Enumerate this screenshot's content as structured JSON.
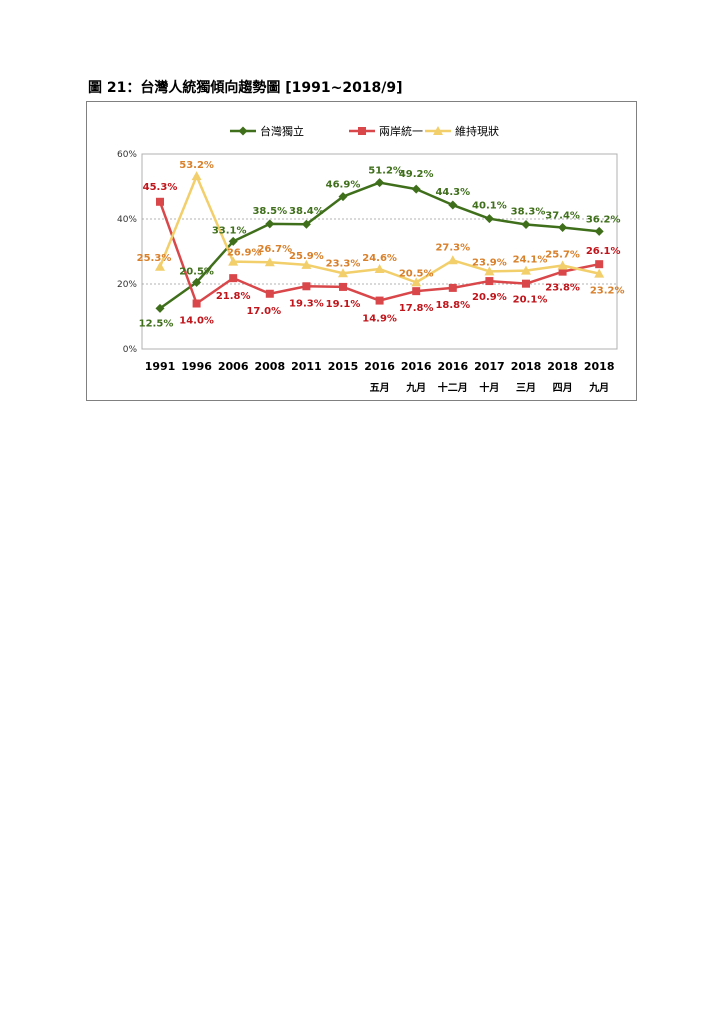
{
  "figure_title": "圖 21：台灣人統獨傾向趨勢圖 [1991~2018/9]",
  "chart_data": {
    "type": "line",
    "ylim": [
      0,
      60
    ],
    "yticks": [
      "0%",
      "20%",
      "40%",
      "60%"
    ],
    "grid": "horizontal dashed at 20% and 40%",
    "legend_position": "top",
    "categories": [
      {
        "year": "1991",
        "sub": ""
      },
      {
        "year": "1996",
        "sub": ""
      },
      {
        "year": "2006",
        "sub": ""
      },
      {
        "year": "2008",
        "sub": ""
      },
      {
        "year": "2011",
        "sub": ""
      },
      {
        "year": "2015",
        "sub": ""
      },
      {
        "year": "2016",
        "sub": "五月"
      },
      {
        "year": "2016",
        "sub": "九月"
      },
      {
        "year": "2016",
        "sub": "十二月"
      },
      {
        "year": "2017",
        "sub": "十月"
      },
      {
        "year": "2018",
        "sub": "三月"
      },
      {
        "year": "2018",
        "sub": "四月"
      },
      {
        "year": "2018",
        "sub": "九月"
      }
    ],
    "series": [
      {
        "name": "台灣獨立",
        "color": "#3f6f1b",
        "marker": "diamond",
        "values": [
          12.5,
          20.5,
          33.1,
          38.5,
          38.4,
          46.9,
          51.2,
          49.2,
          44.3,
          40.1,
          38.3,
          37.4,
          36.2
        ],
        "labels": [
          "12.5%",
          "20.5%",
          "33.1%",
          "38.5%",
          "38.4%",
          "46.9%",
          "51.2%",
          "49.2%",
          "44.3%",
          "40.1%",
          "38.3%",
          "37.4%",
          "36.2%"
        ]
      },
      {
        "name": "兩岸統一",
        "color": "#d9474a",
        "label_color": "#c0151b",
        "marker": "square",
        "values": [
          45.3,
          14.0,
          21.8,
          17.0,
          19.3,
          19.1,
          14.9,
          17.8,
          18.8,
          20.9,
          20.1,
          23.8,
          26.1
        ],
        "labels": [
          "45.3%",
          "14.0%",
          "21.8%",
          "17.0%",
          "19.3%",
          "19.1%",
          "14.9%",
          "17.8%",
          "18.8%",
          "20.9%",
          "20.1%",
          "23.8%",
          "26.1%"
        ]
      },
      {
        "name": "維持現狀",
        "color": "#f2cf6b",
        "label_color": "#d9802b",
        "marker": "triangle",
        "values": [
          25.3,
          53.2,
          26.9,
          26.7,
          25.9,
          23.3,
          24.6,
          20.5,
          27.3,
          23.9,
          24.1,
          25.7,
          23.2
        ],
        "labels": [
          "25.3%",
          "53.2%",
          "26.9%",
          "26.7%",
          "25.9%",
          "23.3%",
          "24.6%",
          "20.5%",
          "27.3%",
          "23.9%",
          "24.1%",
          "25.7%",
          "23.2%"
        ]
      }
    ]
  }
}
